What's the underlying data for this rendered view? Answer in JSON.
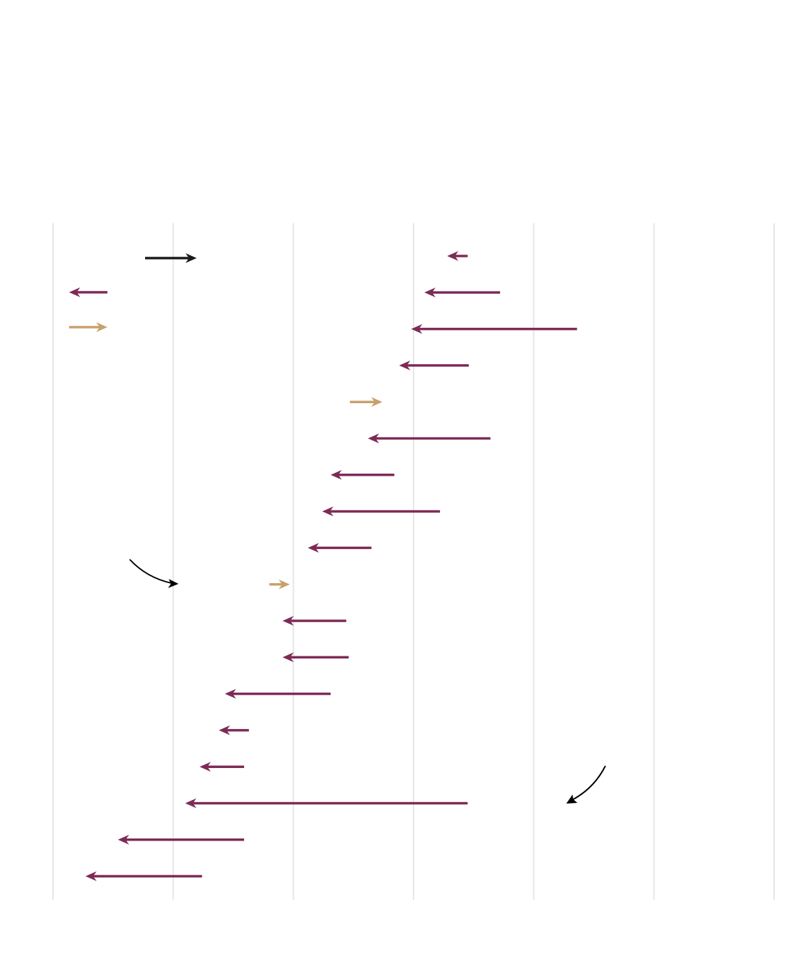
{
  "chart_data": {
    "type": "arrow",
    "xlim": [
      0,
      6
    ],
    "grid": "vertical",
    "gridlines_x": [
      0,
      1,
      2,
      3,
      4,
      5,
      6
    ],
    "colors": {
      "decrease": "#7d2a57",
      "increase": "#c8a06e",
      "legend": "#1a1a1a",
      "annotation": "#000000"
    },
    "rows": [
      {
        "from": 3.45,
        "to": 3.28,
        "direction": "decrease"
      },
      {
        "from": 3.72,
        "to": 3.09,
        "direction": "decrease"
      },
      {
        "from": 4.36,
        "to": 2.98,
        "direction": "decrease"
      },
      {
        "from": 3.46,
        "to": 2.88,
        "direction": "decrease"
      },
      {
        "from": 2.47,
        "to": 2.74,
        "direction": "increase"
      },
      {
        "from": 3.64,
        "to": 2.62,
        "direction": "decrease"
      },
      {
        "from": 2.84,
        "to": 2.31,
        "direction": "decrease"
      },
      {
        "from": 3.22,
        "to": 2.24,
        "direction": "decrease"
      },
      {
        "from": 2.65,
        "to": 2.12,
        "direction": "decrease"
      },
      {
        "from": 1.8,
        "to": 1.97,
        "direction": "increase"
      },
      {
        "from": 2.44,
        "to": 1.91,
        "direction": "decrease"
      },
      {
        "from": 2.46,
        "to": 1.91,
        "direction": "decrease"
      },
      {
        "from": 2.31,
        "to": 1.43,
        "direction": "decrease"
      },
      {
        "from": 1.63,
        "to": 1.38,
        "direction": "decrease"
      },
      {
        "from": 1.59,
        "to": 1.22,
        "direction": "decrease"
      },
      {
        "from": 3.45,
        "to": 1.1,
        "direction": "decrease"
      },
      {
        "from": 1.59,
        "to": 0.54,
        "direction": "decrease"
      },
      {
        "from": 1.24,
        "to": 0.27,
        "direction": "decrease"
      }
    ],
    "legend": [
      {
        "direction": "decrease"
      },
      {
        "direction": "increase"
      }
    ]
  }
}
